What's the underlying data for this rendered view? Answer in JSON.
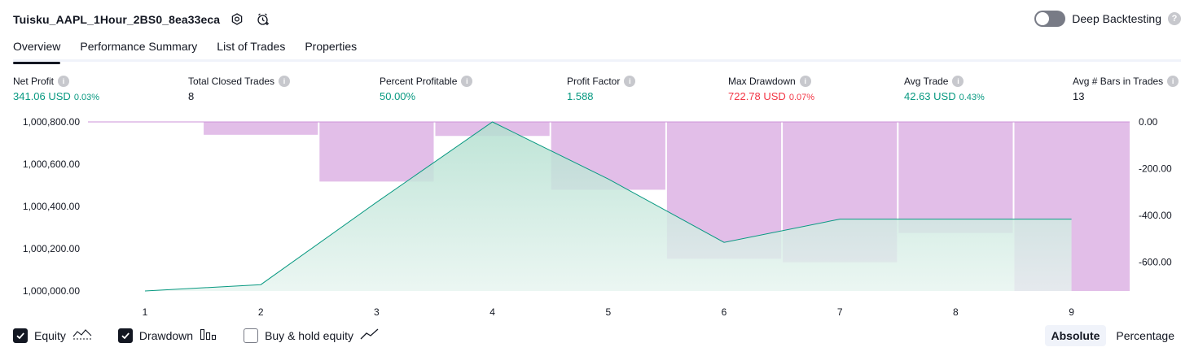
{
  "header": {
    "title": "Tuisku_AAPL_1Hour_2BS0_8ea33eca",
    "icons": [
      "settings-icon",
      "alert-add-icon"
    ],
    "deep_backtesting_label": "Deep Backtesting",
    "deep_backtesting_on": false,
    "help_glyph": "?"
  },
  "tabs": [
    {
      "label": "Overview",
      "active": true
    },
    {
      "label": "Performance Summary",
      "active": false
    },
    {
      "label": "List of Trades",
      "active": false
    },
    {
      "label": "Properties",
      "active": false
    }
  ],
  "metrics": [
    {
      "label": "Net Profit",
      "value": "341.06 USD",
      "pct": "0.03%",
      "color": "#089981"
    },
    {
      "label": "Total Closed Trades",
      "value": "8",
      "pct": "",
      "color": "#131722"
    },
    {
      "label": "Percent Profitable",
      "value": "50.00%",
      "pct": "",
      "color": "#089981"
    },
    {
      "label": "Profit Factor",
      "value": "1.588",
      "pct": "",
      "color": "#089981"
    },
    {
      "label": "Max Drawdown",
      "value": "722.78 USD",
      "pct": "0.07%",
      "color": "#f23645"
    },
    {
      "label": "Avg Trade",
      "value": "42.63 USD",
      "pct": "0.43%",
      "color": "#089981"
    },
    {
      "label": "Avg # Bars in Trades",
      "value": "13",
      "pct": "",
      "color": "#131722"
    }
  ],
  "chart_data": {
    "type": "line",
    "x": [
      1,
      2,
      3,
      4,
      5,
      6,
      7,
      8,
      9
    ],
    "series": [
      {
        "name": "Equity",
        "values": [
          1000000,
          1000030,
          1000420,
          1000800,
          1000530,
          1000230,
          1000340,
          1000340,
          1000340
        ],
        "color": "#089981",
        "axis": "left"
      },
      {
        "name": "Drawdown",
        "values": [
          0,
          -55,
          -255,
          -60,
          -290,
          -585,
          -600,
          -475,
          -722.78
        ],
        "color": "#ce93d8",
        "axis": "right"
      }
    ],
    "left_ticks": [
      "1,000,800.00",
      "1,000,600.00",
      "1,000,400.00",
      "1,000,200.00",
      "1,000,000.00"
    ],
    "right_ticks": [
      "0.00",
      "-200.00",
      "-400.00",
      "-600.00"
    ],
    "ylim_left": [
      1000000,
      1000800
    ],
    "ylim_right": [
      -722.78,
      0
    ]
  },
  "legend": [
    {
      "label": "Equity",
      "checked": true,
      "icon": "equity-line-icon"
    },
    {
      "label": "Drawdown",
      "checked": true,
      "icon": "drawdown-bars-icon"
    },
    {
      "label": "Buy & hold equity",
      "checked": false,
      "icon": "buy-hold-line-icon"
    }
  ],
  "mode": [
    {
      "label": "Absolute",
      "active": true
    },
    {
      "label": "Percentage",
      "active": false
    }
  ]
}
